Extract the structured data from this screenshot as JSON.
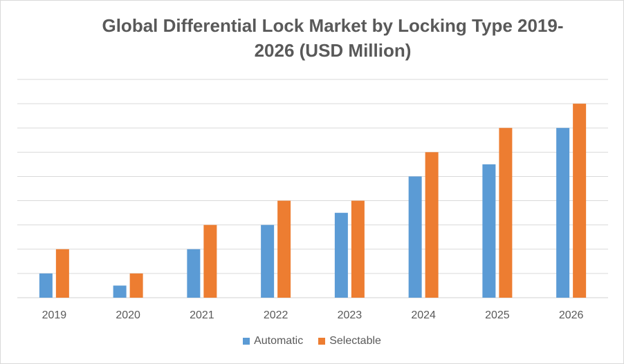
{
  "chart_data": {
    "type": "bar",
    "title": "Global Differential Lock Market by Locking Type 2019-2026 (USD Million)",
    "categories": [
      "2019",
      "2020",
      "2021",
      "2022",
      "2023",
      "2024",
      "2025",
      "2026"
    ],
    "series": [
      {
        "name": "Automatic",
        "color": "#5b9bd5",
        "values": [
          1,
          0.5,
          2,
          3,
          3.5,
          5,
          5.5,
          7
        ]
      },
      {
        "name": "Selectable",
        "color": "#ed7d31",
        "values": [
          2,
          1,
          3,
          4,
          4,
          6,
          7,
          8
        ]
      }
    ],
    "ylim": [
      0,
      9
    ],
    "gridlines": 9,
    "xlabel": "",
    "ylabel": "",
    "legend": "bottom"
  }
}
